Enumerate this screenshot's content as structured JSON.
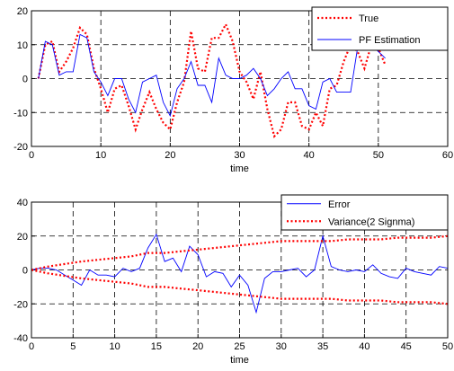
{
  "chart_data": [
    {
      "type": "line",
      "xlabel": "time",
      "ylabel": "",
      "xlim": [
        0,
        60
      ],
      "ylim": [
        -20,
        20
      ],
      "xticks": [
        0,
        10,
        20,
        30,
        40,
        50,
        60
      ],
      "yticks": [
        -20,
        -10,
        0,
        10,
        20
      ],
      "grid": true,
      "legend_position": "top-right",
      "series": [
        {
          "name": "True",
          "color": "#ff0000",
          "style": "dotted",
          "x": [
            1,
            2,
            3,
            4,
            5,
            6,
            7,
            8,
            9,
            10,
            11,
            12,
            13,
            14,
            15,
            16,
            17,
            18,
            19,
            20,
            21,
            22,
            23,
            24,
            25,
            26,
            27,
            28,
            29,
            30,
            31,
            32,
            33,
            34,
            35,
            36,
            37,
            38,
            39,
            40,
            41,
            42,
            43,
            44,
            45,
            46,
            47,
            48,
            49,
            50,
            51
          ],
          "y": [
            0,
            10,
            11,
            2,
            5,
            9,
            15,
            13,
            3,
            -3,
            -10,
            -3,
            -2,
            -8,
            -15,
            -9,
            -4,
            -9,
            -13,
            -15,
            -7,
            -1,
            14,
            3,
            2,
            12,
            12,
            16,
            11,
            2,
            -1,
            -6,
            2,
            -9,
            -17,
            -15,
            -7,
            -7,
            -14,
            -15,
            -10,
            -14,
            -3,
            -2,
            5,
            10,
            8,
            3,
            10,
            9,
            4
          ],
          "visible": true
        },
        {
          "name": "PF Estimation",
          "color": "#0000ff",
          "style": "solid",
          "x": [
            1,
            2,
            3,
            4,
            5,
            6,
            7,
            8,
            9,
            10,
            11,
            12,
            13,
            14,
            15,
            16,
            17,
            18,
            19,
            20,
            21,
            22,
            23,
            24,
            25,
            26,
            27,
            28,
            29,
            30,
            31,
            32,
            33,
            34,
            35,
            36,
            37,
            38,
            39,
            40,
            41,
            42,
            43,
            44,
            45,
            46,
            47,
            48,
            49,
            50,
            51
          ],
          "y": [
            0,
            11,
            10,
            1,
            2,
            2,
            13,
            12,
            2,
            -1,
            -5,
            0,
            0,
            -6,
            -10,
            -1,
            0,
            1,
            -7,
            -11,
            -3,
            0,
            5,
            -2,
            -2,
            -7,
            6,
            1,
            0,
            0,
            1,
            3,
            0,
            -5,
            -3,
            0,
            2,
            -3,
            -3,
            -8,
            -9,
            -1,
            0,
            -4,
            -4,
            -4,
            9,
            13,
            10,
            8,
            6
          ]
        }
      ]
    },
    {
      "type": "line",
      "xlabel": "time",
      "ylabel": "",
      "xlim": [
        0,
        50
      ],
      "ylim": [
        -40,
        40
      ],
      "xticks": [
        0,
        5,
        10,
        15,
        20,
        25,
        30,
        35,
        40,
        45,
        50
      ],
      "yticks": [
        -40,
        -20,
        0,
        20,
        40
      ],
      "grid": true,
      "legend_position": "top-right",
      "series": [
        {
          "name": "Error",
          "color": "#0000ff",
          "style": "solid",
          "x": [
            0,
            1,
            2,
            3,
            4,
            5,
            6,
            7,
            8,
            9,
            10,
            11,
            12,
            13,
            14,
            15,
            16,
            17,
            18,
            19,
            20,
            21,
            22,
            23,
            24,
            25,
            26,
            27,
            28,
            29,
            30,
            31,
            32,
            33,
            34,
            35,
            36,
            37,
            38,
            39,
            40,
            41,
            42,
            43,
            44,
            45,
            46,
            47,
            48,
            49,
            50
          ],
          "y": [
            0,
            1,
            1,
            0,
            -3,
            -6,
            -9,
            0,
            -3,
            -3,
            -4,
            1,
            -1,
            1,
            13,
            21,
            5,
            7,
            -1,
            14,
            9,
            -4,
            -1,
            -2,
            -10,
            -3,
            -9,
            -25,
            -5,
            -1,
            -1,
            0,
            1,
            -4,
            0,
            20,
            2,
            0,
            -1,
            0,
            -1,
            3,
            -2,
            -4,
            -5,
            1,
            -1,
            -2,
            -3,
            2,
            1
          ]
        },
        {
          "name": "Variance(2 Signma)",
          "color": "#ff0000",
          "style": "dotted",
          "x": [
            0,
            2,
            4,
            6,
            8,
            10,
            12,
            14,
            16,
            18,
            20,
            22,
            24,
            26,
            28,
            30,
            32,
            34,
            36,
            38,
            40,
            42,
            44,
            46,
            48,
            50
          ],
          "y_upper": [
            0,
            2,
            3.5,
            5,
            6,
            7,
            8,
            10,
            10,
            11,
            12,
            13,
            14,
            15,
            16,
            17,
            17,
            17,
            17,
            18,
            18,
            18,
            19,
            19,
            19,
            20
          ],
          "y_lower": [
            0,
            -2,
            -3.5,
            -5,
            -6,
            -7,
            -8,
            -10,
            -10,
            -11,
            -12,
            -13,
            -14,
            -15,
            -16,
            -17,
            -17,
            -17,
            -17,
            -18,
            -18,
            -18,
            -19,
            -19,
            -19,
            -20
          ]
        }
      ]
    }
  ]
}
